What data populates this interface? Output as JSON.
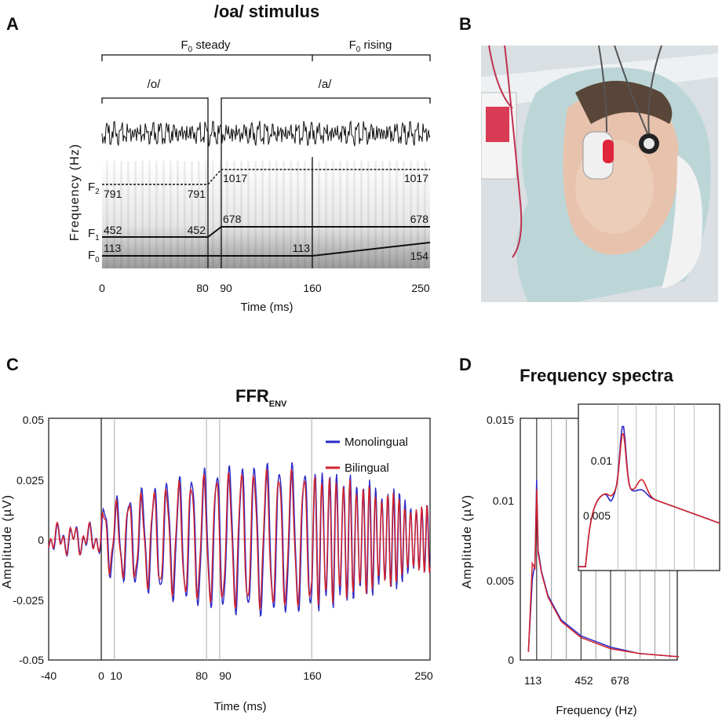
{
  "panels": {
    "a": "A",
    "b": "B",
    "c": "C",
    "d": "D"
  },
  "panel_a": {
    "title": "/oa/ stimulus",
    "segments": {
      "steady": "F",
      "steady_sub": "0",
      "steady_word": " steady",
      "rising": "F",
      "rising_sub": "0",
      "rising_word": " rising"
    },
    "vowels": {
      "o": "/o/",
      "a": "/a/"
    },
    "ylabel": "Frequency (Hz)",
    "xlabel": "Time (ms)",
    "xticks": [
      "0",
      "80",
      "90",
      "160",
      "250"
    ],
    "formants": [
      {
        "main": "F",
        "sub": "2"
      },
      {
        "main": "F",
        "sub": "1"
      },
      {
        "main": "F",
        "sub": "0"
      }
    ],
    "values": {
      "f2_start": "791",
      "f2_end_o": "791",
      "f2_start_a": "1017",
      "f2_end_a": "1017",
      "f1_start": "452",
      "f1_end_o": "452",
      "f1_start_a": "678",
      "f1_end_a": "678",
      "f0_start": "113",
      "f0_160": "113",
      "f0_end": "154"
    },
    "chart_data": {
      "type": "line",
      "series": [
        {
          "name": "F2",
          "x": [
            0,
            80,
            90,
            250
          ],
          "y": [
            791,
            791,
            1017,
            1017
          ]
        },
        {
          "name": "F1",
          "x": [
            0,
            80,
            90,
            250
          ],
          "y": [
            452,
            452,
            678,
            678
          ]
        },
        {
          "name": "F0",
          "x": [
            0,
            80,
            90,
            160,
            250
          ],
          "y": [
            113,
            113,
            113,
            113,
            154
          ]
        }
      ]
    }
  },
  "panel_c": {
    "title": "FFR",
    "title_sub": "ENV",
    "ylabel": "Amplitude (µV)",
    "xlabel": "Time (ms)",
    "yticks": [
      "0.05",
      "0.025",
      "0",
      "-0.025",
      "-0.05"
    ],
    "xticks": [
      "-40",
      "0",
      "10",
      "80",
      "90",
      "160",
      "250"
    ],
    "legend": [
      {
        "label": "Monolingual",
        "color": "#2a2ac8"
      },
      {
        "label": "Bilingual",
        "color": "#d4222a"
      }
    ],
    "chart_data": {
      "type": "line",
      "xlim": [
        -40,
        250
      ],
      "ylim": [
        -0.05,
        0.05
      ],
      "grid_lines_x": [
        0,
        10,
        80,
        90,
        160
      ],
      "series": [
        {
          "name": "Monolingual",
          "color": "#2a2ac8"
        },
        {
          "name": "Bilingual",
          "color": "#d4222a"
        }
      ]
    }
  },
  "panel_d": {
    "title": "Frequency spectra",
    "ylabel": "Amplitude (µV)",
    "xlabel": "Frequency (Hz)",
    "yticks": [
      "0.015",
      "0.01",
      "0.005",
      "0"
    ],
    "xticks": [
      "113",
      "452",
      "678"
    ],
    "inset_yticks": [
      "0.01",
      "0.005"
    ],
    "chart_data": {
      "type": "line",
      "ylim": [
        0,
        0.015
      ],
      "series": [
        {
          "name": "Monolingual",
          "color": "#2a2ac8",
          "x": [
            50,
            80,
            100,
            113,
            125,
            150,
            200,
            300,
            452,
            678,
            900,
            1200
          ],
          "y": [
            0.0005,
            0.005,
            0.006,
            0.0112,
            0.0068,
            0.0055,
            0.004,
            0.0025,
            0.0015,
            0.0008,
            0.0004,
            0.0002
          ]
        },
        {
          "name": "Bilingual",
          "color": "#d4222a",
          "x": [
            50,
            80,
            100,
            113,
            125,
            150,
            200,
            300,
            452,
            678,
            900,
            1200
          ],
          "y": [
            0.0005,
            0.006,
            0.0057,
            0.0106,
            0.0066,
            0.0054,
            0.0039,
            0.0024,
            0.0014,
            0.0007,
            0.0004,
            0.0002
          ]
        }
      ]
    }
  }
}
